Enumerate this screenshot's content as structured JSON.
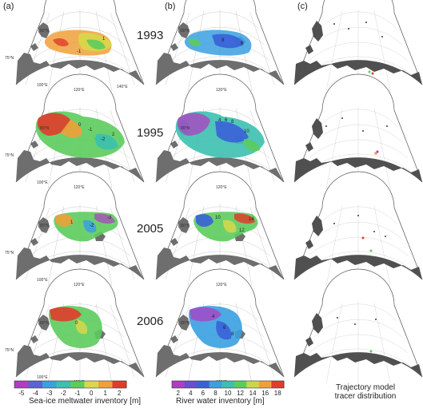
{
  "panels": {
    "a": "(a)",
    "b": "(b)",
    "c": "(c)"
  },
  "years": [
    "1993",
    "1995",
    "2005",
    "2006"
  ],
  "map_labels": {
    "lat80": "80°N",
    "lat75": "75°N",
    "lon100": "100°E",
    "lon120": "120°E",
    "lon140": "140°E"
  },
  "colorbar_a": {
    "ticks": [
      "-5",
      "-4",
      "-3",
      "-2",
      "-1",
      "0",
      "1",
      "2"
    ],
    "label": "Sea-ice meltwater inventory [m]",
    "colors": [
      "#b03cc4",
      "#5a62d8",
      "#3aa0e0",
      "#3cc0b0",
      "#5ccc5c",
      "#d8d84a",
      "#f0a038",
      "#e03c2c"
    ]
  },
  "colorbar_b": {
    "ticks": [
      "2",
      "4",
      "6",
      "8",
      "10",
      "12",
      "14",
      "16",
      "18"
    ],
    "label": "River water inventory [m]",
    "colors": [
      "#b03cc4",
      "#6a4ed0",
      "#3a60d8",
      "#3aa0e0",
      "#3cc0b0",
      "#5ccc5c",
      "#c8d84a",
      "#f0a038",
      "#e03c2c"
    ]
  },
  "traj_label": {
    "line1": "Trajectory model",
    "line2": "tracer distribution"
  },
  "contour_labels": {
    "a1993": [
      "1",
      "-1"
    ],
    "a1995": [
      "0",
      "-1",
      "-2",
      "2"
    ],
    "a2005": [
      "1",
      "-2",
      "-3"
    ],
    "a2006": [
      "0"
    ],
    "b1993": [
      "6",
      "8"
    ],
    "b1995": [
      "4",
      "6",
      "8",
      "10"
    ],
    "b2005": [
      "10",
      "14",
      "12"
    ],
    "b2006": [
      "4",
      "6",
      "8"
    ]
  }
}
